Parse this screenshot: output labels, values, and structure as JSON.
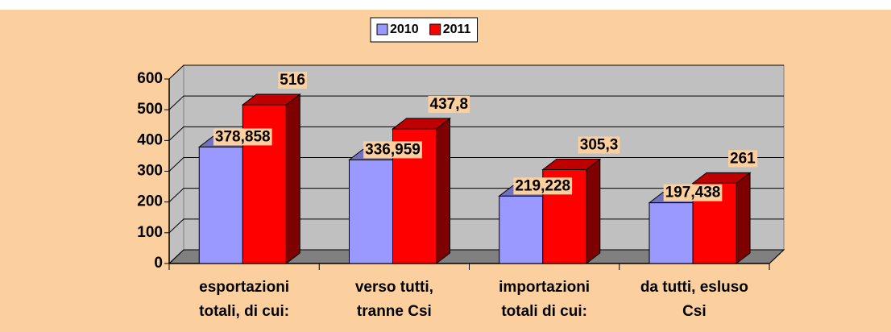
{
  "chart_data": {
    "type": "bar3d",
    "categories": [
      "esportazioni totali, di cui:",
      "verso tutti, tranne Csi",
      "importazioni totali di cui:",
      "da tutti, esluso Csi"
    ],
    "series": [
      {
        "name": "2010",
        "color": "#9999ff",
        "values": [
          378.858,
          336.959,
          219.228,
          197.438
        ],
        "value_labels": [
          "378,858",
          "336,959",
          "219,228",
          "197,438"
        ]
      },
      {
        "name": "2011",
        "color": "#ff0000",
        "values": [
          516,
          437.8,
          305.3,
          261
        ],
        "value_labels": [
          "516",
          "437,8",
          "305,3",
          "261"
        ]
      }
    ],
    "ylim": [
      0,
      600
    ],
    "yticks": [
      0,
      100,
      200,
      300,
      400,
      500,
      600
    ],
    "grid": true,
    "legend": "top"
  }
}
